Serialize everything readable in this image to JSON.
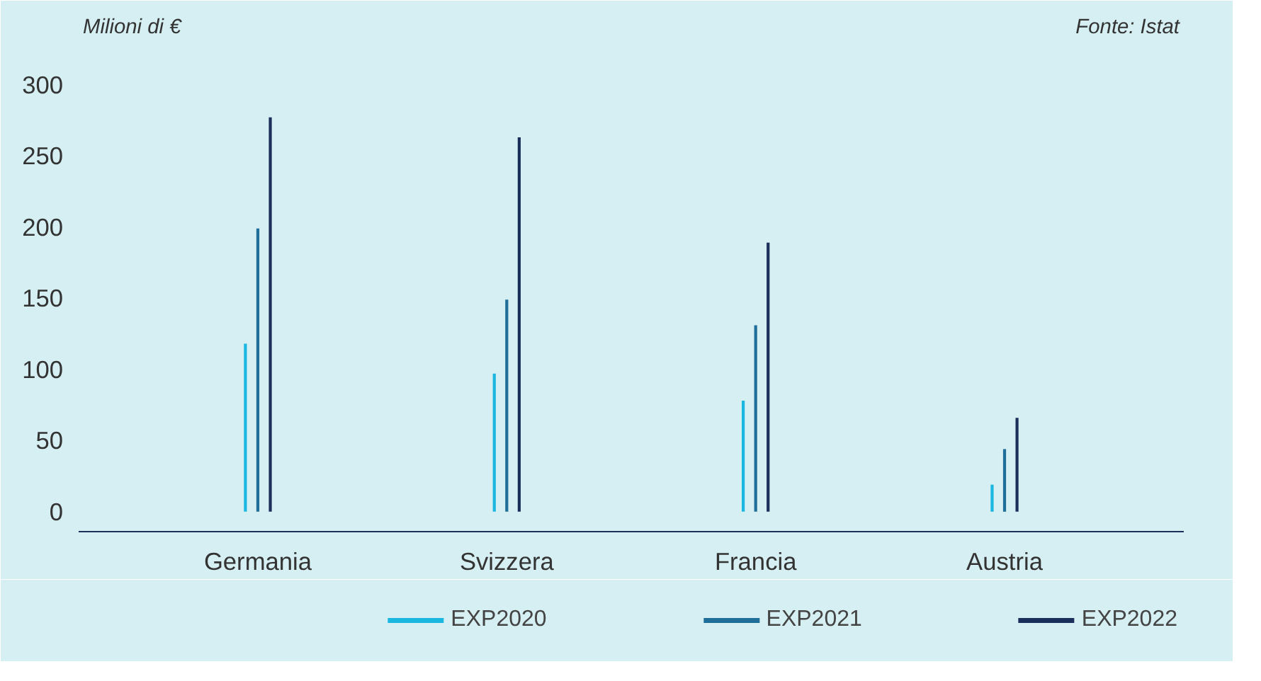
{
  "chart_data": {
    "type": "bar",
    "ylabel": "Milioni di €",
    "annotations": [
      "Fonte: Istat"
    ],
    "categories": [
      "Germania",
      "Svizzera",
      "Francia",
      "Austria"
    ],
    "series": [
      {
        "name": "EXP2020",
        "color": "#1ab8e0",
        "values": [
          118,
          97,
          78,
          19
        ]
      },
      {
        "name": "EXP2021",
        "color": "#1f6e9a",
        "values": [
          199,
          149,
          131,
          44
        ]
      },
      {
        "name": "EXP2022",
        "color": "#1b2f5b",
        "values": [
          277,
          263,
          189,
          66
        ]
      }
    ],
    "ylim": [
      -14,
      354
    ],
    "yticks": [
      0,
      50,
      100,
      150,
      200,
      250,
      300
    ],
    "grid": false,
    "legend": "bottom"
  }
}
